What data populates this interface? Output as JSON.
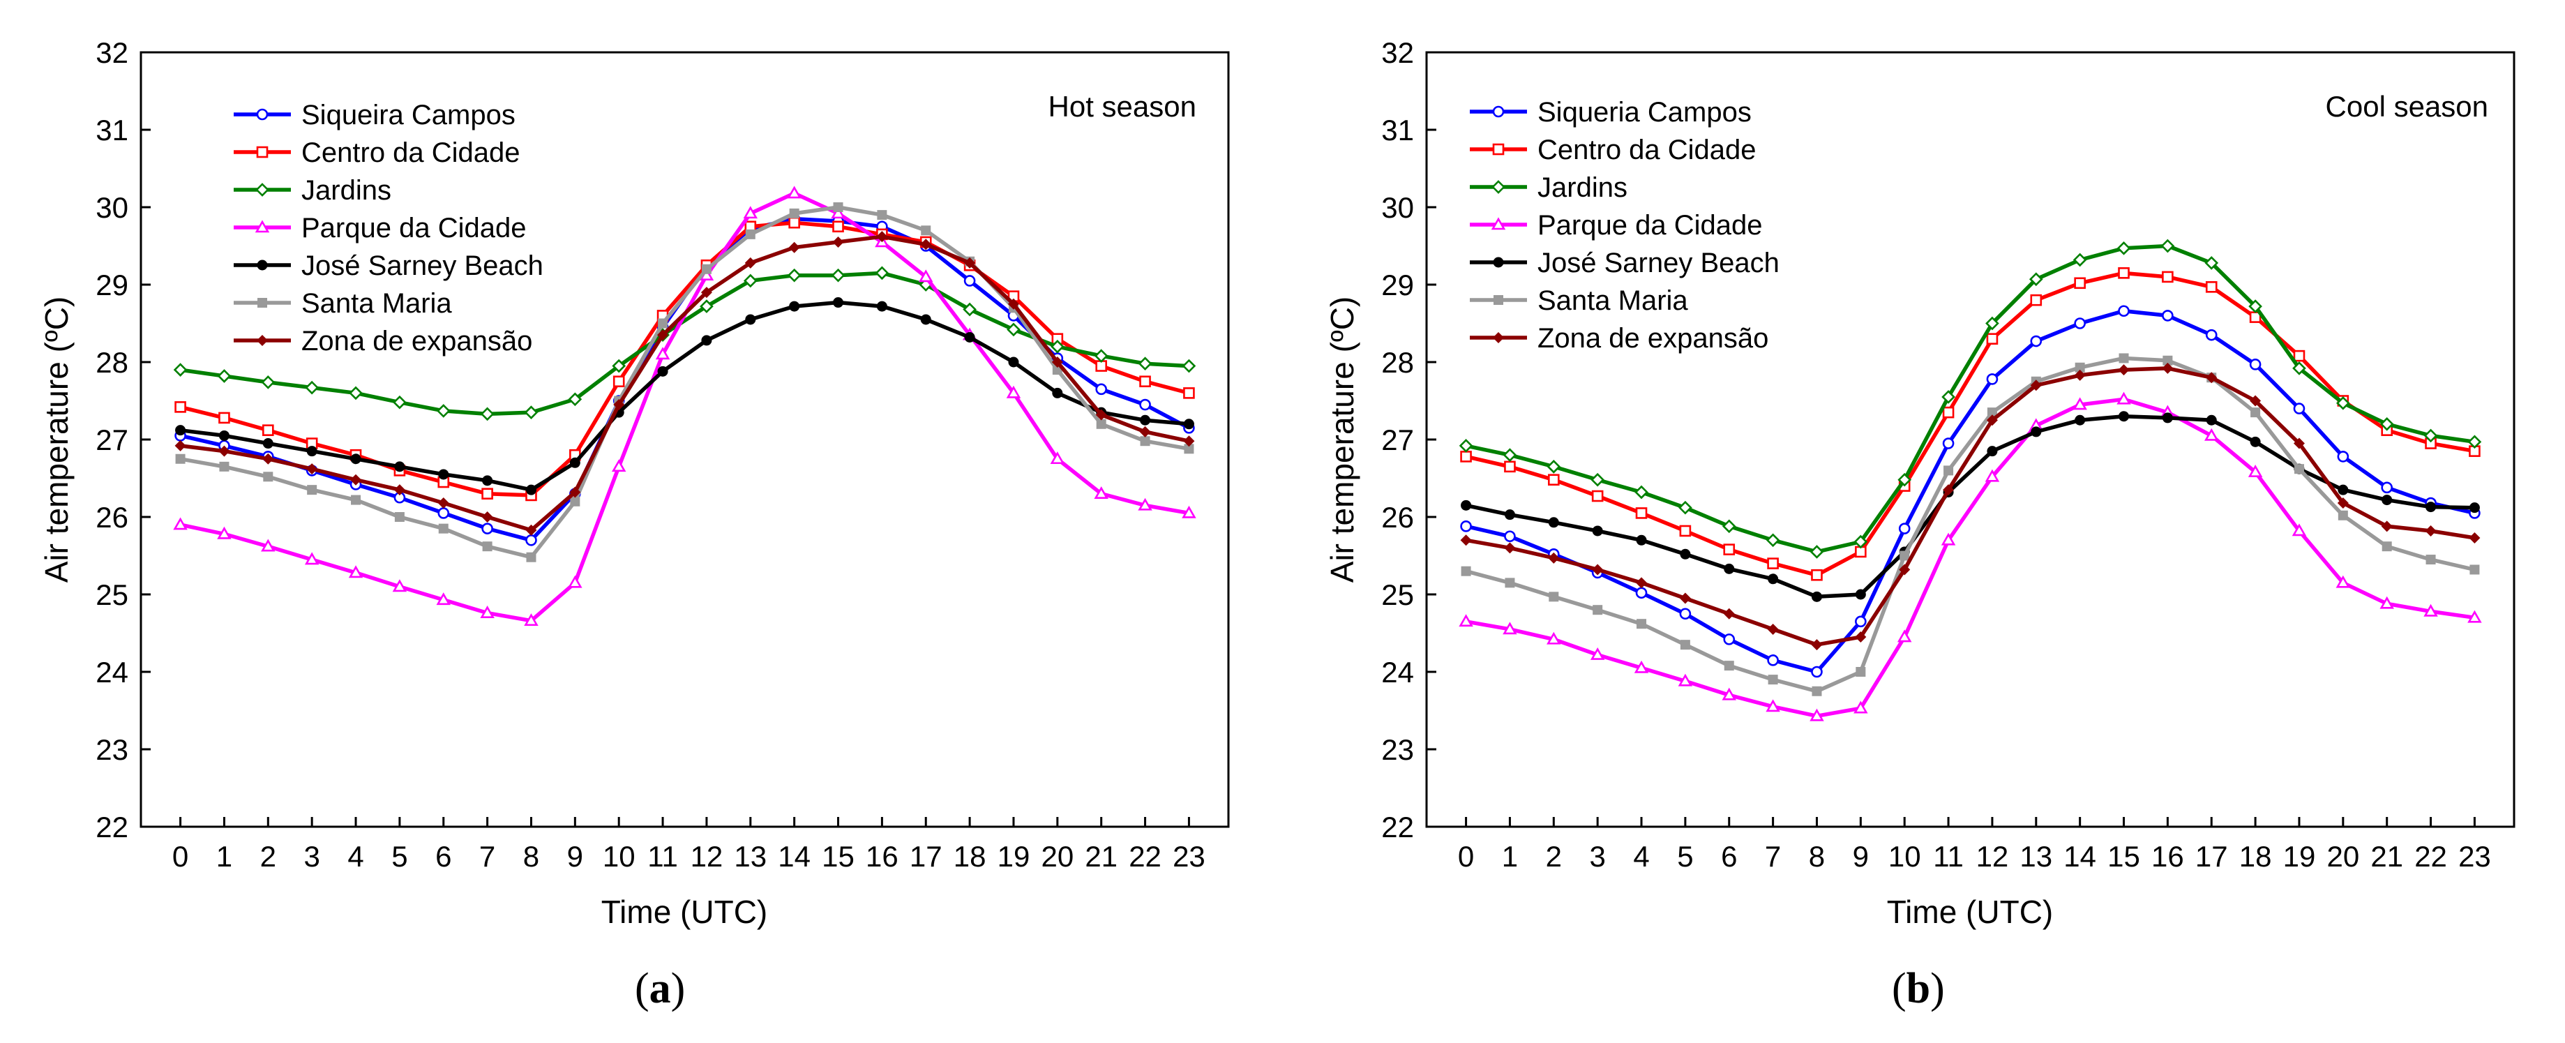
{
  "chart_data": [
    {
      "type": "line",
      "panel_label": "a",
      "title": "Hot season",
      "xlabel": "Time (UTC)",
      "ylabel": "Air temperature (ºC)",
      "ylim": [
        22,
        32
      ],
      "yticks": [
        22,
        23,
        24,
        25,
        26,
        27,
        28,
        29,
        30,
        31,
        32
      ],
      "xlim": [
        -0.9,
        23.9
      ],
      "x": [
        0,
        1,
        2,
        3,
        4,
        5,
        6,
        7,
        8,
        9,
        10,
        11,
        12,
        13,
        14,
        15,
        16,
        17,
        18,
        19,
        20,
        21,
        22,
        23
      ],
      "grid": false,
      "legend_position": "top-left",
      "series": [
        {
          "name": "Siqueira Campos",
          "color": "#0000ff",
          "marker": "circle",
          "values": [
            27.05,
            26.92,
            26.78,
            26.6,
            26.42,
            26.25,
            26.05,
            25.85,
            25.7,
            26.3,
            27.5,
            28.45,
            29.25,
            29.72,
            29.85,
            29.82,
            29.75,
            29.5,
            29.05,
            28.6,
            28.05,
            27.65,
            27.45,
            27.15
          ]
        },
        {
          "name": "Centro da Cidade",
          "color": "#ff0000",
          "marker": "square",
          "values": [
            27.42,
            27.28,
            27.12,
            26.95,
            26.8,
            26.6,
            26.45,
            26.3,
            26.28,
            26.8,
            27.75,
            28.6,
            29.25,
            29.75,
            29.8,
            29.75,
            29.65,
            29.55,
            29.25,
            28.85,
            28.3,
            27.95,
            27.75,
            27.6
          ]
        },
        {
          "name": "Jardins",
          "color": "#008000",
          "marker": "diamond",
          "values": [
            27.9,
            27.82,
            27.74,
            27.67,
            27.6,
            27.48,
            27.37,
            27.33,
            27.35,
            27.52,
            27.95,
            28.35,
            28.72,
            29.05,
            29.12,
            29.12,
            29.15,
            29.0,
            28.68,
            28.42,
            28.2,
            28.08,
            27.98,
            27.95
          ]
        },
        {
          "name": "Parque da Cidade",
          "color": "#ff00ff",
          "marker": "triangle",
          "values": [
            25.9,
            25.78,
            25.62,
            25.45,
            25.28,
            25.1,
            24.93,
            24.76,
            24.66,
            25.15,
            26.65,
            28.1,
            29.12,
            29.92,
            30.18,
            29.92,
            29.55,
            29.1,
            28.35,
            27.6,
            26.75,
            26.3,
            26.15,
            26.05
          ]
        },
        {
          "name": "José Sarney Beach",
          "color": "#000000",
          "marker": "dot",
          "values": [
            27.12,
            27.05,
            26.95,
            26.85,
            26.75,
            26.65,
            26.55,
            26.47,
            26.35,
            26.7,
            27.35,
            27.88,
            28.28,
            28.55,
            28.72,
            28.77,
            28.72,
            28.55,
            28.32,
            28.0,
            27.6,
            27.35,
            27.25,
            27.2
          ]
        },
        {
          "name": "Santa Maria",
          "color": "#999999",
          "marker": "filled-square",
          "values": [
            26.75,
            26.65,
            26.52,
            26.35,
            26.22,
            26.0,
            25.85,
            25.62,
            25.48,
            26.2,
            27.5,
            28.5,
            29.2,
            29.65,
            29.92,
            30.0,
            29.9,
            29.7,
            29.3,
            28.7,
            27.9,
            27.2,
            26.98,
            26.88
          ]
        },
        {
          "name": "Zona de expansão",
          "color": "#8b0000",
          "marker": "filled-diamond",
          "values": [
            26.92,
            26.85,
            26.75,
            26.62,
            26.48,
            26.35,
            26.18,
            26.0,
            25.83,
            26.32,
            27.45,
            28.35,
            28.9,
            29.28,
            29.48,
            29.55,
            29.62,
            29.52,
            29.28,
            28.75,
            28.0,
            27.32,
            27.1,
            26.98
          ]
        }
      ]
    },
    {
      "type": "line",
      "panel_label": "b",
      "title": "Cool season",
      "xlabel": "Time (UTC)",
      "ylabel": "Air temperature (ºC)",
      "ylim": [
        22,
        32
      ],
      "yticks": [
        22,
        23,
        24,
        25,
        26,
        27,
        28,
        29,
        30,
        31,
        32
      ],
      "xlim": [
        -0.9,
        23.9
      ],
      "x": [
        0,
        1,
        2,
        3,
        4,
        5,
        6,
        7,
        8,
        9,
        10,
        11,
        12,
        13,
        14,
        15,
        16,
        17,
        18,
        19,
        20,
        21,
        22,
        23
      ],
      "grid": false,
      "legend_position": "top-left",
      "series": [
        {
          "name": "Siqueria Campos",
          "color": "#0000ff",
          "marker": "circle",
          "values": [
            25.88,
            25.75,
            25.52,
            25.28,
            25.02,
            24.75,
            24.42,
            24.15,
            24.0,
            24.65,
            25.85,
            26.95,
            27.78,
            28.27,
            28.5,
            28.66,
            28.6,
            28.35,
            27.97,
            27.4,
            26.78,
            26.38,
            26.18,
            26.05
          ]
        },
        {
          "name": "Centro da Cidade",
          "color": "#ff0000",
          "marker": "square",
          "values": [
            26.78,
            26.65,
            26.48,
            26.27,
            26.05,
            25.82,
            25.58,
            25.4,
            25.25,
            25.55,
            26.4,
            27.35,
            28.3,
            28.8,
            29.02,
            29.15,
            29.1,
            28.97,
            28.58,
            28.08,
            27.5,
            27.12,
            26.95,
            26.85
          ]
        },
        {
          "name": "Jardins",
          "color": "#008000",
          "marker": "diamond",
          "values": [
            26.92,
            26.8,
            26.65,
            26.48,
            26.32,
            26.12,
            25.88,
            25.7,
            25.55,
            25.68,
            26.48,
            27.55,
            28.5,
            29.07,
            29.32,
            29.47,
            29.5,
            29.28,
            28.72,
            27.92,
            27.47,
            27.2,
            27.05,
            26.97
          ]
        },
        {
          "name": "Parque da Cidade",
          "color": "#ff00ff",
          "marker": "triangle",
          "values": [
            24.65,
            24.55,
            24.42,
            24.22,
            24.05,
            23.88,
            23.7,
            23.55,
            23.43,
            23.53,
            24.45,
            25.7,
            26.52,
            27.18,
            27.45,
            27.52,
            27.35,
            27.05,
            26.58,
            25.82,
            25.15,
            24.88,
            24.78,
            24.7
          ]
        },
        {
          "name": "José Sarney Beach",
          "color": "#000000",
          "marker": "dot",
          "values": [
            26.15,
            26.03,
            25.93,
            25.82,
            25.7,
            25.52,
            25.33,
            25.2,
            24.97,
            25.0,
            25.55,
            26.32,
            26.85,
            27.1,
            27.25,
            27.3,
            27.28,
            27.25,
            26.97,
            26.62,
            26.35,
            26.22,
            26.13,
            26.12
          ]
        },
        {
          "name": "Santa Maria",
          "color": "#999999",
          "marker": "filled-square",
          "values": [
            25.3,
            25.15,
            24.97,
            24.8,
            24.62,
            24.35,
            24.08,
            23.9,
            23.75,
            24.0,
            25.5,
            26.6,
            27.35,
            27.75,
            27.93,
            28.05,
            28.02,
            27.8,
            27.35,
            26.62,
            26.02,
            25.62,
            25.45,
            25.32
          ]
        },
        {
          "name": "Zona de expansão",
          "color": "#8b0000",
          "marker": "filled-diamond",
          "values": [
            25.7,
            25.6,
            25.47,
            25.32,
            25.15,
            24.95,
            24.75,
            24.55,
            24.35,
            24.45,
            25.32,
            26.35,
            27.25,
            27.7,
            27.83,
            27.9,
            27.92,
            27.8,
            27.5,
            26.95,
            26.18,
            25.88,
            25.82,
            25.73
          ]
        }
      ]
    }
  ]
}
